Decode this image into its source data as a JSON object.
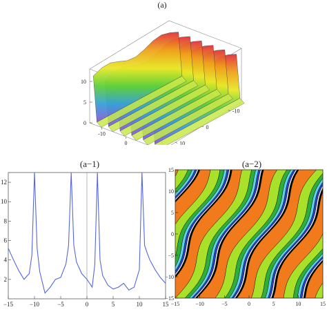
{
  "panels": {
    "a": {
      "title": "(a)",
      "z_ticks": [
        "0",
        "5",
        "10"
      ],
      "x_ticks": [
        "-10",
        "0",
        "10"
      ],
      "y_ticks": [
        "-10",
        "0",
        "10"
      ]
    },
    "a1": {
      "title": "(a−1)",
      "x_ticks": [
        "-15",
        "-10",
        "-5",
        "0",
        "5",
        "10",
        "15"
      ],
      "y_ticks": [
        "2",
        "4",
        "6",
        "8",
        "10",
        "12"
      ]
    },
    "a2": {
      "title": "(a−2)",
      "x_ticks": [
        "-15",
        "-10",
        "-5",
        "0",
        "5",
        "10",
        "15"
      ],
      "y_ticks": [
        "-15",
        "-10",
        "-5",
        "0",
        "5",
        "10",
        "15"
      ]
    }
  },
  "chart_data": [
    {
      "type": "surface",
      "title": "(a)",
      "xlim": [
        -15,
        15
      ],
      "ylim": [
        -15,
        15
      ],
      "zlim": [
        0,
        13
      ],
      "colors": [
        "#e0323c",
        "#f0a21c",
        "#e8e82a",
        "#5fd03a",
        "#3aa0d8",
        "#8a5ad6"
      ]
    },
    {
      "type": "line",
      "title": "(a−1)",
      "xlim": [
        -15,
        15
      ],
      "ylim": [
        0,
        13
      ],
      "color": "#5566dd",
      "x": [
        -15,
        -14,
        -13,
        -12,
        -11,
        -10.5,
        -10,
        -9.5,
        -9,
        -8,
        -7,
        -6,
        -5,
        -4,
        -3.5,
        -3,
        -2.5,
        -2,
        -1,
        0,
        1,
        1.5,
        2,
        2.5,
        3,
        4,
        5,
        6,
        7,
        8,
        9,
        10,
        10.5,
        11,
        11.5,
        12,
        13,
        14,
        15
      ],
      "y": [
        5.2,
        4.0,
        2.9,
        2.0,
        2.6,
        4.5,
        13,
        5.2,
        2.8,
        0.6,
        1.2,
        2.0,
        2.2,
        3.6,
        5.5,
        13,
        5.5,
        3.8,
        2.6,
        2.0,
        1.2,
        3.5,
        13,
        4.0,
        2.4,
        1.4,
        1.0,
        1.2,
        1.6,
        0.9,
        1.2,
        3.0,
        13,
        5.5,
        4.7,
        4.0,
        3.0,
        2.2,
        1.6
      ]
    },
    {
      "type": "contour",
      "title": "(a−2)",
      "xlim": [
        -15,
        15
      ],
      "ylim": [
        -15,
        15
      ],
      "colors": [
        "#f07a1c",
        "#a8e02a",
        "#2fae3a",
        "#5fd0e8",
        "#2a3fc8",
        "#ffffff",
        "#000000"
      ]
    }
  ]
}
